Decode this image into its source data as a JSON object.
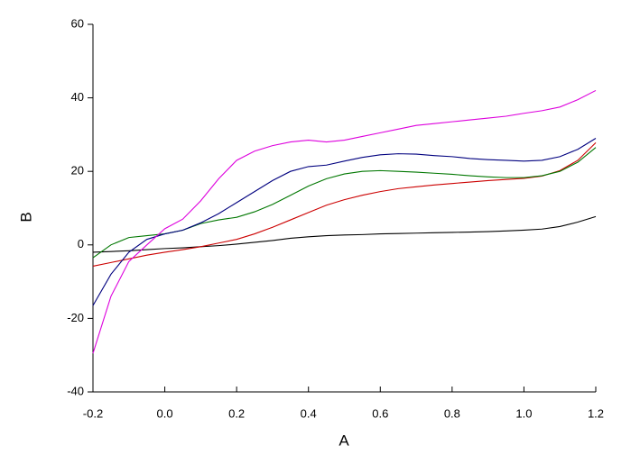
{
  "chart_data": {
    "type": "line",
    "x_label": "A",
    "y_label": "B",
    "x": [
      -0.2,
      -0.15,
      -0.1,
      -0.05,
      0,
      0.05,
      0.1,
      0.15,
      0.2,
      0.25,
      0.3,
      0.35,
      0.4,
      0.45,
      0.5,
      0.55,
      0.6,
      0.65,
      0.7,
      0.75,
      0.8,
      0.85,
      0.9,
      0.95,
      1.0,
      1.05,
      1.1,
      1.15,
      1.2
    ],
    "series": [
      {
        "color": "#000000",
        "values": [
          -2,
          -1.8,
          -1.6,
          -1.3,
          -1,
          -0.8,
          -0.5,
          -0.2,
          0.2,
          0.7,
          1.2,
          1.8,
          2.2,
          2.5,
          2.7,
          2.8,
          3,
          3.1,
          3.2,
          3.3,
          3.4,
          3.5,
          3.6,
          3.8,
          4,
          4.3,
          5,
          6.2,
          7.7
        ]
      },
      {
        "color": "#cc0000",
        "values": [
          -5.8,
          -4.8,
          -3.8,
          -2.8,
          -2,
          -1.3,
          -0.5,
          0.5,
          1.5,
          3,
          4.8,
          6.8,
          8.8,
          10.8,
          12.3,
          13.5,
          14.5,
          15.3,
          15.8,
          16.3,
          16.7,
          17.1,
          17.5,
          17.8,
          18.1,
          18.7,
          20.2,
          23,
          27.8
        ]
      },
      {
        "color": "#007700",
        "values": [
          -3.5,
          0,
          2,
          2.5,
          3,
          4,
          5.8,
          6.8,
          7.5,
          9,
          11,
          13.5,
          16,
          18,
          19.3,
          20,
          20.2,
          20,
          19.8,
          19.5,
          19.2,
          18.8,
          18.5,
          18.3,
          18.3,
          18.8,
          20,
          22.5,
          26.5
        ]
      },
      {
        "color": "#00007f",
        "values": [
          -16.5,
          -8,
          -2,
          1.5,
          3,
          4,
          6,
          8.5,
          11.5,
          14.5,
          17.5,
          20,
          21.3,
          21.7,
          22.8,
          23.8,
          24.5,
          24.8,
          24.7,
          24.3,
          24,
          23.5,
          23.2,
          23,
          22.8,
          23,
          24,
          26,
          29
        ]
      },
      {
        "color": "#dd00dd",
        "values": [
          -29.5,
          -14,
          -4.5,
          0,
          4.4,
          7,
          12,
          18,
          23,
          25.5,
          27,
          28,
          28.5,
          28,
          28.5,
          29.5,
          30.5,
          31.5,
          32.5,
          33,
          33.5,
          34,
          34.5,
          35,
          35.8,
          36.5,
          37.5,
          39.5,
          42
        ]
      }
    ],
    "xlim": [
      -0.2,
      1.2
    ],
    "xticks": [
      -0.2,
      {
        "value": 0,
        "label": "0.0"
      },
      0.2,
      0.4,
      0.6,
      0.8,
      {
        "value": 1,
        "label": "1.0"
      },
      1.2
    ],
    "ylim": [
      -40,
      60
    ],
    "yticks": [
      -40,
      -20,
      0,
      20,
      40,
      60
    ]
  }
}
